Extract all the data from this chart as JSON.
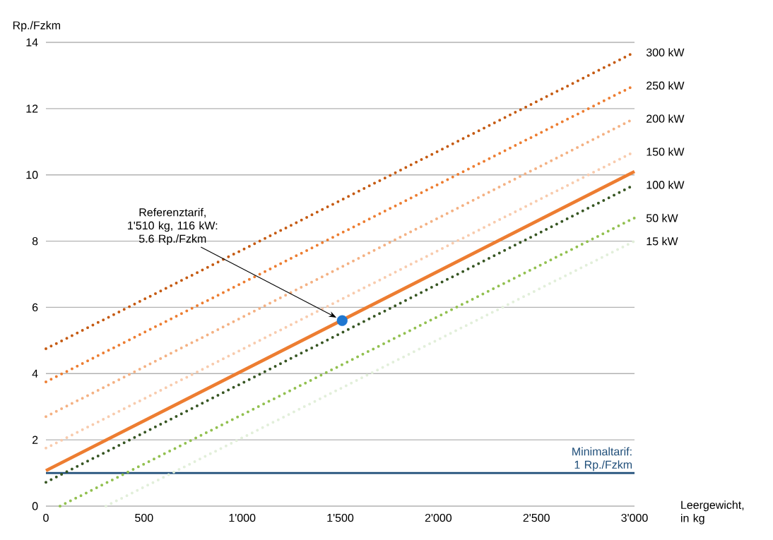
{
  "chart_data": {
    "type": "line",
    "ylabel": "Rp./Fzkm",
    "xlabel": "Leergewicht, in kg",
    "xlim": [
      0,
      3000
    ],
    "ylim": [
      0,
      14
    ],
    "xticks": [
      0,
      500,
      {
        "value": 1000,
        "label": "1'000"
      },
      {
        "value": 1500,
        "label": "1'500"
      },
      {
        "value": 2000,
        "label": "2'000"
      },
      {
        "value": 2500,
        "label": "2'500"
      },
      {
        "value": 3000,
        "label": "3'000"
      }
    ],
    "yticks": [
      0,
      2,
      4,
      6,
      8,
      10,
      12,
      14
    ],
    "grid": "y",
    "series": [
      {
        "name": "300 kW",
        "color": "#c55a11",
        "line_style": "dotted",
        "x": [
          0,
          3000
        ],
        "values": [
          4.75,
          13.7
        ]
      },
      {
        "name": "250 kW",
        "color": "#ed7d31",
        "line_style": "dotted",
        "x": [
          0,
          3000
        ],
        "values": [
          3.75,
          12.7
        ]
      },
      {
        "name": "200 kW",
        "color": "#f4b183",
        "line_style": "dotted",
        "x": [
          0,
          3000
        ],
        "values": [
          2.7,
          11.7
        ]
      },
      {
        "name": "150 kW",
        "color": "#f8cbad",
        "line_style": "dotted",
        "x": [
          0,
          3000
        ],
        "values": [
          1.75,
          10.7
        ]
      },
      {
        "name": "100 kW",
        "color": "#375623",
        "line_style": "dotted",
        "x": [
          0,
          3000
        ],
        "values": [
          0.72,
          9.7
        ]
      },
      {
        "name": "50 kW",
        "color": "#92c050",
        "line_style": "dotted",
        "x": [
          72,
          3000
        ],
        "values": [
          0,
          8.7
        ]
      },
      {
        "name": "15 kW",
        "color": "#e2efda",
        "line_style": "dotted",
        "x": [
          306,
          3000
        ],
        "values": [
          0,
          8.0
        ]
      },
      {
        "color": "#ed7d31",
        "line_style": "solid",
        "x": [
          0,
          3000
        ],
        "values": [
          1.07,
          10.1
        ]
      },
      {
        "type": "scatter",
        "marker": "circle",
        "color": "#1f77d0",
        "x": [
          1510
        ],
        "values": [
          5.6
        ]
      }
    ],
    "ref_lines": [
      {
        "axis": "y",
        "value": 1,
        "label": "Minimaltarif: 1 Rp./Fzkm",
        "color": "#1f4e79"
      }
    ],
    "annotations": [
      "Referenztarif, 1'510 kg, 116 kW: 5.6 Rp./Fzkm"
    ]
  }
}
